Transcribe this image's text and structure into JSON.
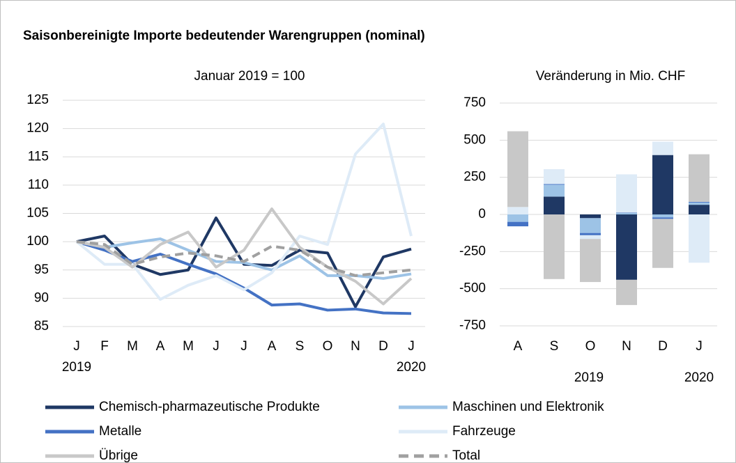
{
  "title": "Saisonbereinigte Importe bedeutender Warengruppen (nominal)",
  "chart_data": [
    {
      "type": "line",
      "subtitle": "Januar 2019 = 100",
      "categories": [
        "J",
        "F",
        "M",
        "A",
        "M",
        "J",
        "J",
        "A",
        "S",
        "O",
        "N",
        "D",
        "J"
      ],
      "year_labels": [
        "2019",
        "2020"
      ],
      "ylim": [
        85,
        125
      ],
      "yticks": [
        85,
        90,
        95,
        100,
        105,
        110,
        115,
        120,
        125
      ],
      "grid": true,
      "series": [
        {
          "name": "Chemisch-pharmazeutische Produkte",
          "color": "#1f3864",
          "values": [
            100,
            101,
            96,
            94.2,
            95,
            104.2,
            96,
            95.8,
            98.5,
            98,
            88.5,
            97.3,
            98.7
          ]
        },
        {
          "name": "Maschinen und Elektronik",
          "color": "#9dc3e6",
          "values": [
            100,
            99,
            99.8,
            100.5,
            98.5,
            96.5,
            96.3,
            95,
            97.5,
            94,
            94,
            93.5,
            94.3
          ]
        },
        {
          "name": "Metalle",
          "color": "#4472c4",
          "values": [
            100,
            98.5,
            96.5,
            97.8,
            96,
            94.3,
            91.8,
            88.8,
            89,
            87.9,
            88.1,
            87.4,
            87.3
          ]
        },
        {
          "name": "Fahrzeuge",
          "color": "#deebf7",
          "values": [
            100,
            96,
            96,
            89.8,
            92.3,
            94,
            91.5,
            94.5,
            101,
            99.5,
            115.5,
            120.8,
            101
          ]
        },
        {
          "name": "Übrige",
          "color": "#c8c8c8",
          "values": [
            100,
            99,
            95.5,
            99.5,
            101.7,
            95.5,
            98.5,
            105.8,
            99,
            95.5,
            93,
            89,
            93.5
          ]
        },
        {
          "name": "Total",
          "color": "#a0a0a0",
          "dashed": true,
          "values": [
            100,
            99.5,
            96,
            97.3,
            98,
            97.5,
            96.5,
            99.2,
            98.5,
            95.5,
            94,
            94.5,
            95
          ]
        }
      ]
    },
    {
      "type": "stacked_bar",
      "subtitle": "Veränderung in Mio. CHF",
      "categories": [
        "A",
        "S",
        "O",
        "N",
        "D",
        "J"
      ],
      "year_labels": [
        "2019",
        "2020"
      ],
      "ylim": [
        -750,
        750
      ],
      "yticks": [
        -750,
        -500,
        -250,
        0,
        250,
        500,
        750
      ],
      "grid": true,
      "series": [
        {
          "color": "#1f3864",
          "values": [
            0,
            120,
            -25,
            -440,
            400,
            65
          ]
        },
        {
          "color": "#9dc3e6",
          "values": [
            -50,
            80,
            -100,
            10,
            -20,
            15
          ]
        },
        {
          "color": "#4472c4",
          "values": [
            -30,
            5,
            -15,
            3,
            -10,
            5
          ]
        },
        {
          "color": "#deebf7",
          "values": [
            50,
            100,
            -25,
            257,
            90,
            -325
          ]
        },
        {
          "color": "#c8c8c8",
          "values": [
            510,
            -435,
            -290,
            -170,
            -330,
            320
          ]
        }
      ]
    }
  ]
}
